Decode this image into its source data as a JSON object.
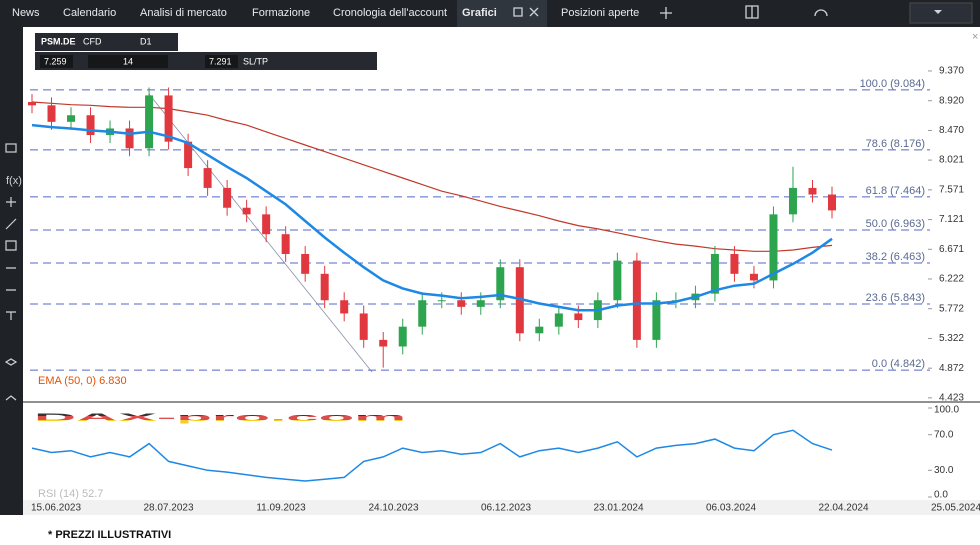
{
  "nav": {
    "tabs": [
      "News",
      "Calendario",
      "Analisi di mercato",
      "Formazione",
      "Cronologia dell'account",
      "Grafici",
      "Posizioni aperte"
    ]
  },
  "toolbar": {
    "symbol": "PSM.DE",
    "instrument": "CFD",
    "timeframe": "D1",
    "bid": "7.259",
    "volume": "14",
    "ask": "7.291",
    "sltp": "SL/TP"
  },
  "chart_data": {
    "type": "candlestick",
    "open": [
      8.9,
      8.85,
      8.6,
      8.7,
      8.4,
      8.5,
      8.2,
      9.0,
      8.3,
      7.9,
      7.6,
      7.3,
      7.2,
      6.9,
      6.6,
      6.3,
      5.9,
      5.7,
      5.3,
      5.2,
      5.5,
      5.9,
      5.9,
      5.8,
      5.9,
      6.4,
      5.4,
      5.5,
      5.7,
      5.6,
      5.9,
      6.5,
      5.3,
      5.9,
      5.9,
      6.0,
      6.6,
      6.3,
      6.2,
      7.2,
      7.6,
      7.5
    ],
    "high": [
      9.02,
      8.97,
      8.82,
      8.82,
      8.62,
      8.62,
      9.12,
      9.12,
      8.42,
      8.02,
      7.72,
      7.42,
      7.32,
      7.02,
      6.72,
      6.42,
      6.02,
      5.82,
      5.42,
      5.62,
      6.02,
      6.02,
      6.02,
      6.02,
      6.52,
      6.52,
      5.62,
      5.82,
      5.82,
      6.02,
      6.62,
      6.62,
      6.02,
      6.02,
      6.12,
      6.72,
      6.72,
      6.42,
      7.32,
      7.92,
      7.72,
      7.62
    ],
    "low": [
      8.73,
      8.48,
      8.48,
      8.28,
      8.28,
      8.08,
      8.08,
      8.18,
      7.78,
      7.48,
      7.18,
      7.08,
      6.78,
      6.48,
      6.18,
      5.78,
      5.58,
      5.18,
      4.88,
      5.08,
      5.38,
      5.78,
      5.68,
      5.68,
      5.78,
      5.28,
      5.28,
      5.38,
      5.48,
      5.48,
      5.78,
      5.18,
      5.18,
      5.78,
      5.78,
      5.88,
      6.18,
      6.08,
      6.08,
      7.08,
      7.38,
      7.14
    ],
    "close": [
      8.85,
      8.6,
      8.7,
      8.4,
      8.5,
      8.2,
      9.0,
      8.3,
      7.9,
      7.6,
      7.3,
      7.2,
      6.9,
      6.6,
      6.3,
      5.9,
      5.7,
      5.3,
      5.2,
      5.5,
      5.9,
      5.9,
      5.8,
      5.9,
      6.4,
      5.4,
      5.5,
      5.7,
      5.6,
      5.9,
      6.5,
      5.3,
      5.9,
      5.9,
      6.0,
      6.6,
      6.3,
      6.2,
      7.2,
      7.6,
      7.5,
      7.26
    ],
    "up_color": "#2da44e",
    "down_color": "#e0383e",
    "ema": {
      "label": "EMA (50, 0) 6.830",
      "color": "#1e88e5",
      "values": [
        8.55,
        8.52,
        8.5,
        8.47,
        8.45,
        8.42,
        8.45,
        8.38,
        8.28,
        8.1,
        7.92,
        7.75,
        7.55,
        7.35,
        7.1,
        6.85,
        6.62,
        6.4,
        6.2,
        6.08,
        6.0,
        5.97,
        5.93,
        5.95,
        5.98,
        5.92,
        5.85,
        5.8,
        5.75,
        5.75,
        5.82,
        5.85,
        5.85,
        5.88,
        5.95,
        6.05,
        6.12,
        6.15,
        6.3,
        6.45,
        6.62,
        6.83
      ]
    },
    "ma": {
      "color": "#c0392b",
      "values": [
        8.9,
        8.88,
        8.86,
        8.85,
        8.83,
        8.82,
        8.82,
        8.8,
        8.75,
        8.7,
        8.62,
        8.55,
        8.45,
        8.35,
        8.25,
        8.15,
        8.05,
        7.95,
        7.85,
        7.75,
        7.65,
        7.55,
        7.48,
        7.4,
        7.32,
        7.25,
        7.18,
        7.1,
        7.03,
        6.98,
        6.92,
        6.86,
        6.8,
        6.75,
        6.72,
        6.68,
        6.66,
        6.64,
        6.64,
        6.66,
        6.7,
        6.73
      ]
    },
    "fib_levels": [
      {
        "value": 9.084,
        "label": "100.0 (9.084)"
      },
      {
        "value": 8.176,
        "label": "78.6 (8.176)"
      },
      {
        "value": 7.464,
        "label": "61.8 (7.464)"
      },
      {
        "value": 6.963,
        "label": "50.0 (6.963)"
      },
      {
        "value": 6.463,
        "label": "38.2 (6.463)"
      },
      {
        "value": 5.843,
        "label": "23.6 (5.843)"
      },
      {
        "value": 4.842,
        "label": "0.0 (4.842)"
      }
    ],
    "fib_color": "#5468c8",
    "ylim": [
      4.36,
      9.99
    ],
    "yticks": [
      {
        "value": 9.37,
        "label": "9.370"
      },
      {
        "value": 8.92,
        "label": "8.920"
      },
      {
        "value": 8.47,
        "label": "8.470"
      },
      {
        "value": 8.021,
        "label": "8.021"
      },
      {
        "value": 7.571,
        "label": "7.571"
      },
      {
        "value": 7.121,
        "label": "7.121"
      },
      {
        "value": 6.671,
        "label": "6.671"
      },
      {
        "value": 6.222,
        "label": "6.222"
      },
      {
        "value": 5.772,
        "label": "5.772"
      },
      {
        "value": 5.322,
        "label": "5.322"
      },
      {
        "value": 4.872,
        "label": "4.872"
      },
      {
        "value": 4.423,
        "label": "4.423"
      }
    ],
    "date_labels": [
      "15.06.2023",
      "28.07.2023",
      "11.09.2023",
      "24.10.2023",
      "06.12.2023",
      "23.01.2024",
      "06.03.2024",
      "22.04.2024",
      "25.05.2024"
    ],
    "rsi": {
      "label": "RSI (14) 52.7",
      "color": "#1e88e5",
      "values": [
        55,
        50,
        52,
        45,
        50,
        45,
        60,
        40,
        35,
        30,
        28,
        25,
        22,
        20,
        18,
        20,
        22,
        40,
        45,
        55,
        50,
        52,
        48,
        50,
        60,
        45,
        52,
        55,
        50,
        55,
        62,
        45,
        55,
        58,
        60,
        65,
        55,
        52,
        70,
        75,
        60,
        52.7
      ],
      "ylim": [
        0,
        100
      ],
      "yticks": [
        {
          "value": 100,
          "label": "100.0"
        },
        {
          "value": 70,
          "label": "70.0"
        },
        {
          "value": 30,
          "label": "30.0"
        },
        {
          "value": 0,
          "label": "0.0"
        }
      ]
    }
  },
  "watermark": "DAX-pro.com",
  "footnote": "* PREZZI ILLUSTRATIVI"
}
